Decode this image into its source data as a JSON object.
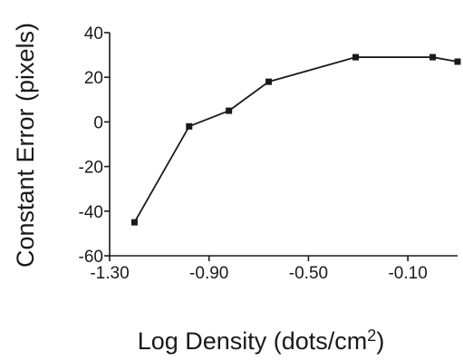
{
  "chart_data": {
    "type": "line",
    "title": "",
    "xlabel": "Log Density (dots/cm",
    "xlabel_superscript": "2",
    "xlabel_suffix": ")",
    "ylabel": "Constant Error (pixels)",
    "xlim": [
      -1.3,
      0.1
    ],
    "ylim": [
      -60,
      40
    ],
    "x_ticks": [
      -1.3,
      -0.9,
      -0.5,
      -0.1
    ],
    "x_tick_labels": [
      "-1.30",
      "-0.90",
      "-0.50",
      "-0.10"
    ],
    "y_ticks": [
      -60,
      -40,
      -20,
      0,
      20,
      40
    ],
    "y_tick_labels": [
      "-60",
      "-40",
      "-20",
      "0",
      "20",
      "40"
    ],
    "grid": false,
    "series": [
      {
        "x": [
          -1.2,
          -0.98,
          -0.82,
          -0.66,
          -0.31,
          0.0,
          0.1
        ],
        "y": [
          -45,
          -2,
          5,
          18,
          29,
          29,
          27
        ]
      }
    ],
    "colors": {
      "line": "#1a1a1a",
      "marker": "#1a1a1a",
      "text": "#1a1a1a"
    }
  }
}
